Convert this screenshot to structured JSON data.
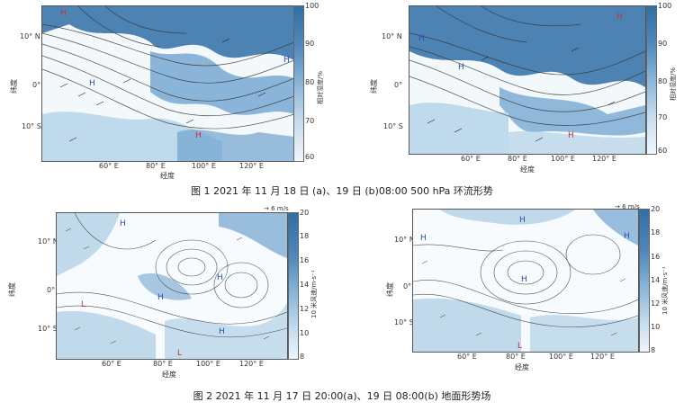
{
  "figure1": {
    "caption": "图 1  2021 年 11 月 18 日 (a)、19 日 (b)08:00 500 hPa 环流形势",
    "panels": [
      {
        "id": "a",
        "y_axis_label": "纬度",
        "x_axis_label": "经度",
        "y_ticks": [
          "10° N",
          "0°",
          "10° S"
        ],
        "x_ticks": [
          "60° E",
          "80° E",
          "100° E",
          "120° E"
        ],
        "colorbar_label": "相对湿度/%",
        "colorbar_ticks": [
          "100",
          "90",
          "80",
          "70",
          "60"
        ]
      },
      {
        "id": "b",
        "y_axis_label": "纬度",
        "x_axis_label": "经度",
        "y_ticks": [
          "10° N",
          "0°",
          "10° S"
        ],
        "x_ticks": [
          "60° E",
          "80° E",
          "100° E",
          "120° E"
        ],
        "colorbar_label": "相对湿度/%",
        "colorbar_ticks": [
          "100",
          "90",
          "80",
          "70",
          "60"
        ]
      }
    ]
  },
  "figure2": {
    "caption": "图 2  2021 年 11 月 17 日 20:00(a)、19 日 08:00(b) 地面形势场",
    "panels": [
      {
        "id": "a",
        "y_axis_label": "纬度",
        "x_axis_label": "经度",
        "y_ticks": [
          "10° N",
          "0°",
          "10° S"
        ],
        "x_ticks": [
          "60° E",
          "80° E",
          "100° E",
          "120° E"
        ],
        "colorbar_label": "10 米风速/m·s⁻¹",
        "colorbar_ticks": [
          "20",
          "18",
          "16",
          "14",
          "12",
          "10",
          "8"
        ],
        "wind_reference": "→ 6 m/s"
      },
      {
        "id": "b",
        "y_axis_label": "纬度",
        "x_axis_label": "经度",
        "y_ticks": [
          "10° N",
          "0°",
          "10° S"
        ],
        "x_ticks": [
          "60° E",
          "80° E",
          "100° E",
          "120° E"
        ],
        "colorbar_label": "10 米风速/m·s⁻¹",
        "colorbar_ticks": [
          "20",
          "18",
          "16",
          "14",
          "12",
          "10",
          "8"
        ],
        "wind_reference": "→ 6 m/s"
      }
    ]
  },
  "map_labels": {
    "high": "H",
    "low": "L"
  },
  "colors": {
    "rh_dark": "#2f6fa6",
    "rh_mid": "#6fa3cf",
    "rh_light": "#b9d6ea",
    "rh_pale": "#e3eff7",
    "contour": "#333333",
    "high_marker": "#2a4fb0",
    "low_marker": "#c8302f"
  }
}
